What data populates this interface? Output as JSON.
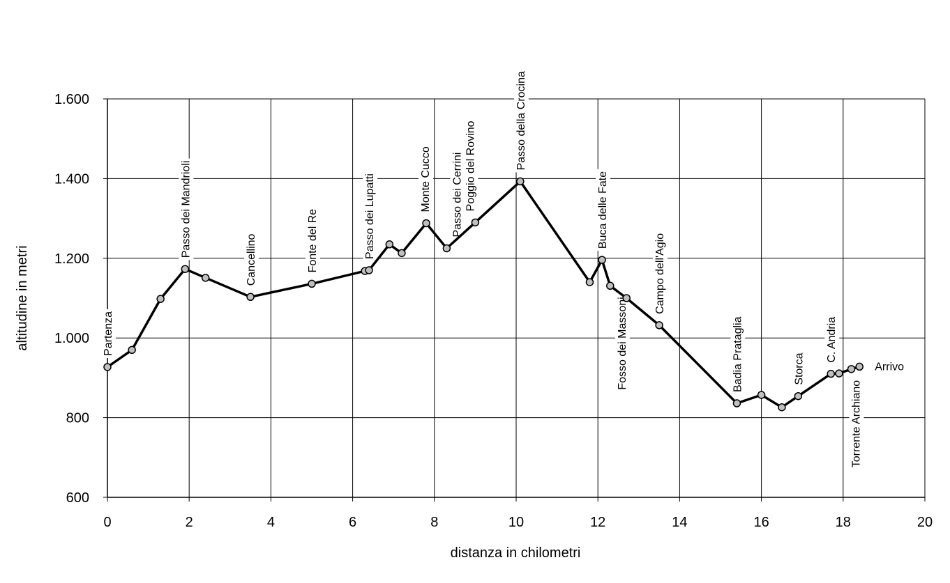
{
  "chart_data": {
    "type": "line",
    "xlabel": "distanza in chilometri",
    "ylabel": "altitudine  in metri",
    "xlim": [
      0,
      20
    ],
    "ylim": [
      600,
      1600
    ],
    "x_ticks": [
      0,
      2,
      4,
      6,
      8,
      10,
      12,
      14,
      16,
      18,
      20
    ],
    "x_tick_labels": [
      "0",
      "2",
      "4",
      "6",
      "8",
      "10",
      "12",
      "14",
      "16",
      "18",
      "20"
    ],
    "y_ticks": [
      600,
      800,
      1000,
      1200,
      1400,
      1600
    ],
    "y_tick_labels": [
      "600",
      "800",
      "1.000",
      "1.200",
      "1.400",
      "1.600"
    ],
    "grid": true,
    "line_color": "#000000",
    "marker_color": "#c0c0c0",
    "series": [
      {
        "points": [
          {
            "x": 0.0,
            "y": 927,
            "label": "Partenza"
          },
          {
            "x": 0.6,
            "y": 970
          },
          {
            "x": 1.3,
            "y": 1098
          },
          {
            "x": 1.9,
            "y": 1173,
            "label": "Passo dei Mandrioli"
          },
          {
            "x": 2.4,
            "y": 1151
          },
          {
            "x": 3.5,
            "y": 1103,
            "label": "Cancellino"
          },
          {
            "x": 5.0,
            "y": 1136,
            "label": "Fonte del Re"
          },
          {
            "x": 6.3,
            "y": 1168
          },
          {
            "x": 6.4,
            "y": 1170,
            "label": "Passo dei Lupatti"
          },
          {
            "x": 6.9,
            "y": 1235
          },
          {
            "x": 7.2,
            "y": 1213
          },
          {
            "x": 7.8,
            "y": 1288,
            "label": "Monte Cucco"
          },
          {
            "x": 8.3,
            "y": 1225,
            "label": "Passo dei Cerrini"
          },
          {
            "x": 9.0,
            "y": 1290,
            "label": "Poggio del Rovino"
          },
          {
            "x": 10.1,
            "y": 1393,
            "label": "Passo della Crocina"
          },
          {
            "x": 11.8,
            "y": 1140
          },
          {
            "x": 12.1,
            "y": 1196,
            "label": "Buca delle Fate"
          },
          {
            "x": 12.3,
            "y": 1131,
            "label": "Fosso dei Massoni"
          },
          {
            "x": 12.7,
            "y": 1100
          },
          {
            "x": 13.5,
            "y": 1032,
            "label": "Campo dell'Agio"
          },
          {
            "x": 15.4,
            "y": 836,
            "label": "Badia Prataglia"
          },
          {
            "x": 16.0,
            "y": 857
          },
          {
            "x": 16.5,
            "y": 826
          },
          {
            "x": 16.9,
            "y": 854,
            "label": "Storca"
          },
          {
            "x": 17.7,
            "y": 910,
            "label": "C. Andria"
          },
          {
            "x": 17.9,
            "y": 911
          },
          {
            "x": 18.2,
            "y": 922,
            "label": "Torrente Archiano"
          },
          {
            "x": 18.4,
            "y": 928,
            "label": "Arrivo"
          }
        ]
      }
    ]
  }
}
